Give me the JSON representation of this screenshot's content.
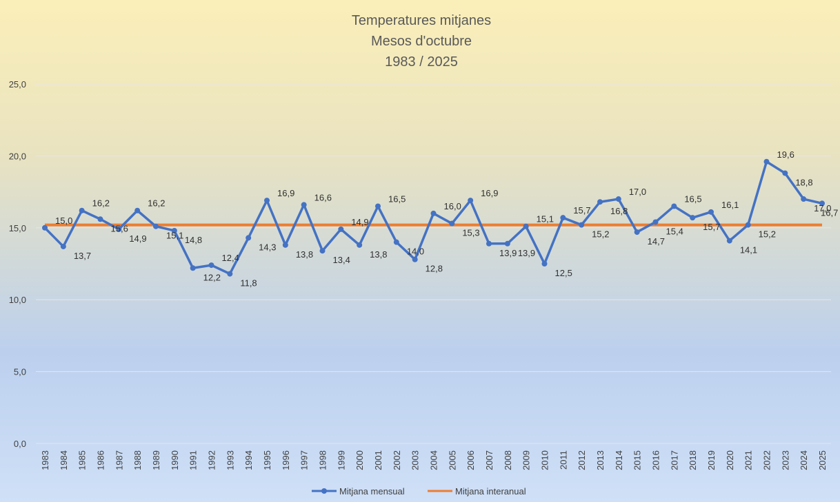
{
  "chart_data": {
    "type": "line",
    "title_lines": [
      "Temperatures mitjanes",
      "Mesos d'octubre",
      "1983 / 2025"
    ],
    "xlabel": "",
    "ylabel": "",
    "ylim": [
      0,
      25
    ],
    "y_ticks": [
      "0,0",
      "5,0",
      "10,0",
      "15,0",
      "20,0",
      "25,0"
    ],
    "y_tick_values": [
      0,
      5,
      10,
      15,
      20,
      25
    ],
    "grid": true,
    "legend_position": "bottom",
    "categories": [
      "1983",
      "1984",
      "1985",
      "1986",
      "1987",
      "1988",
      "1989",
      "1990",
      "1991",
      "1992",
      "1993",
      "1994",
      "1995",
      "1996",
      "1997",
      "1998",
      "1999",
      "2000",
      "2001",
      "2002",
      "2003",
      "2004",
      "2005",
      "2006",
      "2007",
      "2008",
      "2009",
      "2010",
      "2011",
      "2012",
      "2013",
      "2014",
      "2015",
      "2016",
      "2017",
      "2018",
      "2019",
      "2020",
      "2021",
      "2022",
      "2023",
      "2024",
      "2025"
    ],
    "series": [
      {
        "name": "Mitjana mensual",
        "color": "#4472c4",
        "marker": "circle",
        "values": [
          15.0,
          13.7,
          16.2,
          15.6,
          14.9,
          16.2,
          15.1,
          14.8,
          12.2,
          12.4,
          11.8,
          14.3,
          16.9,
          13.8,
          16.6,
          13.4,
          14.9,
          13.8,
          16.5,
          14.0,
          12.8,
          16.0,
          15.3,
          16.9,
          13.9,
          13.9,
          15.1,
          12.5,
          15.7,
          15.2,
          16.8,
          17.0,
          14.7,
          15.4,
          16.5,
          15.7,
          16.1,
          14.1,
          15.2,
          19.6,
          18.8,
          17.0,
          16.7
        ],
        "labels": [
          "15,0",
          "13,7",
          "16,2",
          "15,6",
          "14,9",
          "16,2",
          "15,1",
          "14,8",
          "12,2",
          "12,4",
          "11,8",
          "14,3",
          "16,9",
          "13,8",
          "16,6",
          "13,4",
          "14,9",
          "13,8",
          "16,5",
          "14,0",
          "12,8",
          "16,0",
          "15,3",
          "16,9",
          "13,9",
          "13,9",
          "15,1",
          "12,5",
          "15,7",
          "15,2",
          "16,8",
          "17,0",
          "14,7",
          "15,4",
          "16,5",
          "15,7",
          "16,1",
          "14,1",
          "15,2",
          "19,6",
          "18,8",
          "17,0",
          "16,7"
        ]
      },
      {
        "name": "Mitjana interanual",
        "color": "#ed7d31",
        "constant_value": 15.2
      }
    ]
  }
}
